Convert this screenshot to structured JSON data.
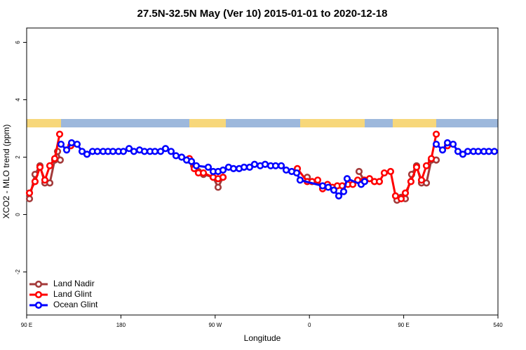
{
  "chart_data": {
    "type": "line",
    "title": "27.5N-32.5N May (Ver 10)   2015-01-01 to 2020-12-18",
    "x_label": "Longitude",
    "y_label": "XCO2 - MLO trend (ppm)",
    "xlim": [
      90,
      540
    ],
    "ylim": [
      -3.5,
      6.5
    ],
    "xticks": [
      {
        "value": 90,
        "label": "90 E"
      },
      180,
      {
        "value": 270,
        "label": "90 W"
      },
      {
        "value": 360,
        "label": "0"
      },
      {
        "value": 450,
        "label": "90 E"
      },
      540
    ],
    "yticks": [
      -2,
      0,
      2,
      4,
      6
    ],
    "legend": "bottom-left",
    "series": [
      {
        "name": "Land Nadir",
        "color": "#a33a3a",
        "x": [
          92.7,
          98,
          102.7,
          107.4,
          112.1,
          116.8,
          119.5,
          122.1,
          null,
          245.4,
          249.4,
          254,
          258.8,
          268.1,
          272.8,
          277.5,
          null,
          357.9,
          null,
          407.4,
          412,
          null,
          443.6,
          447.6,
          451.6,
          457.6,
          462.3,
          467,
          471.7,
          476.4,
          481.1
        ],
        "values": [
          0.55,
          1.4,
          1.7,
          1.1,
          1.1,
          1.9,
          2.2,
          1.9,
          null,
          1.9,
          1.7,
          1.5,
          1.4,
          1.3,
          0.95,
          1.3,
          null,
          1.3,
          null,
          1.5,
          1.2,
          null,
          0.5,
          0.6,
          0.55,
          1.4,
          1.7,
          1.1,
          1.1,
          1.9,
          1.9
        ]
      },
      {
        "name": "Land Glint",
        "color": "#ff0000",
        "x": [
          92.7,
          98,
          102.7,
          107.4,
          112.1,
          116.8,
          121.5,
          null,
          132.2,
          null,
          245.4,
          250,
          254,
          258.8,
          268.1,
          272.8,
          277.5,
          null,
          348.5,
          357.9,
          362.5,
          367.9,
          372.6,
          377.3,
          381.9,
          386.6,
          391.3,
          396.7,
          401.4,
          406.1,
          412.7,
          417.4,
          422.1,
          426.8,
          431.5,
          437.5,
          442.2,
          447.6,
          451.6,
          456.9,
          462.3,
          467,
          471.7,
          476.4,
          481.1,
          null,
          491.8
        ],
        "values": [
          0.75,
          1.15,
          1.65,
          1.2,
          1.7,
          1.95,
          2.8,
          null,
          2.4,
          null,
          1.95,
          1.6,
          1.45,
          1.45,
          1.3,
          1.25,
          1.3,
          null,
          1.6,
          1.15,
          1.15,
          1.2,
          0.9,
          1.05,
          0.95,
          1.0,
          1.0,
          1.05,
          1.05,
          1.2,
          1.2,
          1.25,
          1.15,
          1.15,
          1.45,
          1.5,
          0.65,
          0.55,
          0.75,
          1.15,
          1.65,
          1.2,
          1.7,
          1.95,
          2.8,
          null,
          2.4
        ]
      },
      {
        "name": "Ocean Glint",
        "color": "#0000ff",
        "x": [
          122.8,
          128.2,
          132.9,
          138.2,
          142.9,
          147.6,
          152.9,
          157.6,
          163,
          167.7,
          172.4,
          177.7,
          182.4,
          187.8,
          192.4,
          197.8,
          202.5,
          207.8,
          212.5,
          217.9,
          222.6,
          227.9,
          232.6,
          238,
          242.7,
          247.4,
          252,
          263.4,
          268.1,
          272.8,
          277.5,
          282.8,
          287.5,
          292.9,
          297.6,
          302.9,
          307.6,
          313,
          317.7,
          323,
          327.7,
          333.1,
          337.8,
          343.1,
          347.8,
          351.1,
          372.6,
          378,
          383.3,
          388,
          392.7,
          396,
          409.4,
          412.7,
          null,
          481.1,
          487.1,
          491.8,
          497.2,
          501.8,
          506.5,
          511.2,
          516.6,
          521.2,
          526.6,
          531.3,
          536.6
        ],
        "values": [
          2.45,
          2.25,
          2.5,
          2.45,
          2.2,
          2.1,
          2.2,
          2.2,
          2.2,
          2.2,
          2.2,
          2.2,
          2.2,
          2.3,
          2.2,
          2.25,
          2.2,
          2.2,
          2.2,
          2.2,
          2.3,
          2.2,
          2.05,
          2.0,
          1.9,
          1.85,
          1.7,
          1.65,
          1.5,
          1.5,
          1.55,
          1.65,
          1.6,
          1.6,
          1.65,
          1.65,
          1.75,
          1.7,
          1.75,
          1.7,
          1.7,
          1.7,
          1.55,
          1.5,
          1.45,
          1.2,
          1.0,
          0.95,
          0.85,
          0.65,
          0.8,
          1.25,
          1.05,
          1.15,
          null,
          2.45,
          2.25,
          2.5,
          2.45,
          2.2,
          2.1,
          2.2,
          2.2,
          2.2,
          2.2,
          2.2,
          2.2
        ]
      }
    ]
  }
}
